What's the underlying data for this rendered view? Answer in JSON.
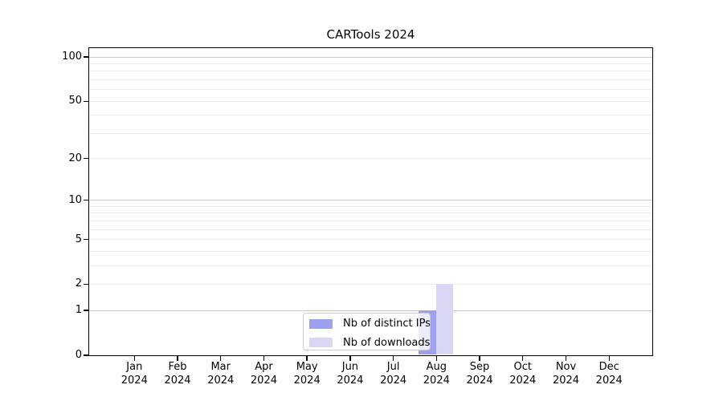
{
  "title": "CARTools 2024",
  "colors": {
    "distinct_ips_bar": "#a0a0f0",
    "downloads_bar": "#d8d8f5",
    "grid_major": "#c9c9c9",
    "grid_minor": "#ececec",
    "axis": "#000000",
    "legend_border": "#cccccc",
    "background": "#ffffff"
  },
  "chart_data": {
    "type": "bar",
    "title": "CARTools 2024",
    "categories": [
      "Jan",
      "Feb",
      "Mar",
      "Apr",
      "May",
      "Jun",
      "Jul",
      "Aug",
      "Sep",
      "Oct",
      "Nov",
      "Dec"
    ],
    "x_tick_second_line": "2024",
    "series": [
      {
        "name": "Nb of distinct IPs",
        "color": "#a0a0f0",
        "values": [
          0,
          0,
          0,
          0,
          0,
          0,
          0,
          1,
          0,
          0,
          0,
          0
        ]
      },
      {
        "name": "Nb of downloads",
        "color": "#d8d8f5",
        "values": [
          0,
          0,
          0,
          0,
          0,
          0,
          0,
          2,
          0,
          0,
          0,
          0
        ]
      }
    ],
    "y_scale": "symlog",
    "ylim": [
      0,
      115
    ],
    "y_tick_labels": [
      0,
      1,
      2,
      5,
      10,
      20,
      50,
      100
    ],
    "y_major_gridlines": [
      1,
      10,
      100
    ],
    "y_minor_gridlines": [
      2,
      3,
      4,
      5,
      6,
      7,
      8,
      9,
      20,
      30,
      40,
      50,
      60,
      70,
      80,
      90
    ],
    "grid": true,
    "legend_position": "inside-bottom-center"
  }
}
